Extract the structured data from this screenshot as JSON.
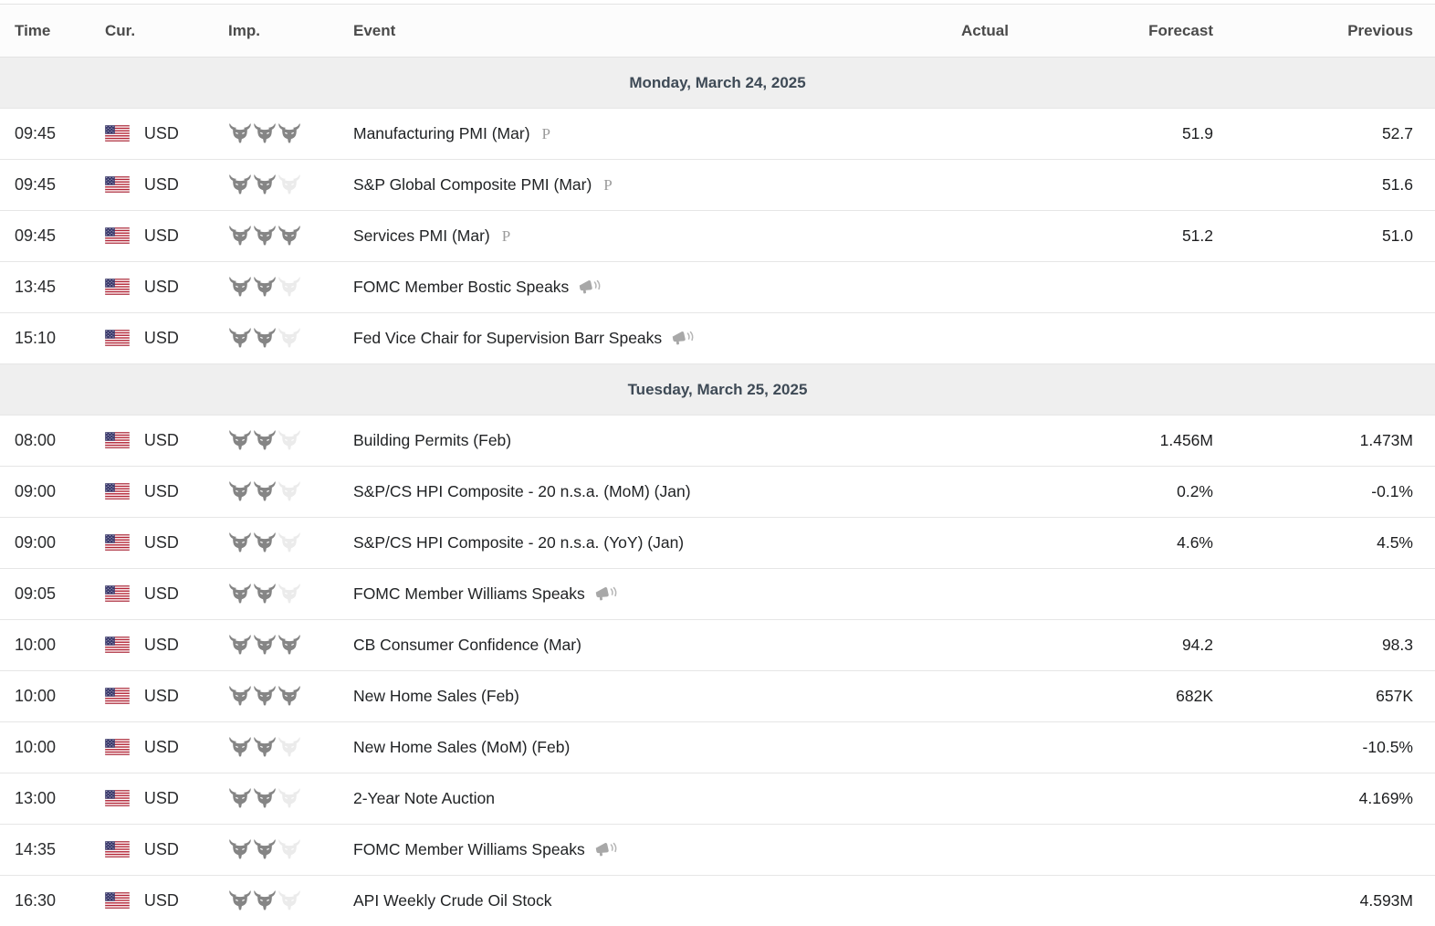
{
  "table": {
    "columns": [
      "Time",
      "Cur.",
      "Imp.",
      "Event",
      "Actual",
      "Forecast",
      "Previous"
    ],
    "groups": [
      {
        "date": "Monday, March 24, 2025",
        "rows": [
          {
            "time": "09:45",
            "currency": "USD",
            "importance": 3,
            "event": "Manufacturing PMI (Mar)",
            "preliminary": true,
            "speech": false,
            "actual": "",
            "forecast": "51.9",
            "previous": "52.7"
          },
          {
            "time": "09:45",
            "currency": "USD",
            "importance": 2,
            "event": "S&P Global Composite PMI (Mar)",
            "preliminary": true,
            "speech": false,
            "actual": "",
            "forecast": "",
            "previous": "51.6"
          },
          {
            "time": "09:45",
            "currency": "USD",
            "importance": 3,
            "event": "Services PMI (Mar)",
            "preliminary": true,
            "speech": false,
            "actual": "",
            "forecast": "51.2",
            "previous": "51.0"
          },
          {
            "time": "13:45",
            "currency": "USD",
            "importance": 2,
            "event": "FOMC Member Bostic Speaks",
            "preliminary": false,
            "speech": true,
            "actual": "",
            "forecast": "",
            "previous": ""
          },
          {
            "time": "15:10",
            "currency": "USD",
            "importance": 2,
            "event": "Fed Vice Chair for Supervision Barr Speaks",
            "preliminary": false,
            "speech": true,
            "actual": "",
            "forecast": "",
            "previous": ""
          }
        ]
      },
      {
        "date": "Tuesday, March 25, 2025",
        "rows": [
          {
            "time": "08:00",
            "currency": "USD",
            "importance": 2,
            "event": "Building Permits (Feb)",
            "preliminary": false,
            "speech": false,
            "actual": "",
            "forecast": "1.456M",
            "previous": "1.473M"
          },
          {
            "time": "09:00",
            "currency": "USD",
            "importance": 2,
            "event": "S&P/CS HPI Composite - 20 n.s.a. (MoM) (Jan)",
            "preliminary": false,
            "speech": false,
            "actual": "",
            "forecast": "0.2%",
            "previous": "-0.1%"
          },
          {
            "time": "09:00",
            "currency": "USD",
            "importance": 2,
            "event": "S&P/CS HPI Composite - 20 n.s.a. (YoY) (Jan)",
            "preliminary": false,
            "speech": false,
            "actual": "",
            "forecast": "4.6%",
            "previous": "4.5%"
          },
          {
            "time": "09:05",
            "currency": "USD",
            "importance": 2,
            "event": "FOMC Member Williams Speaks",
            "preliminary": false,
            "speech": true,
            "actual": "",
            "forecast": "",
            "previous": ""
          },
          {
            "time": "10:00",
            "currency": "USD",
            "importance": 3,
            "event": "CB Consumer Confidence (Mar)",
            "preliminary": false,
            "speech": false,
            "actual": "",
            "forecast": "94.2",
            "previous": "98.3"
          },
          {
            "time": "10:00",
            "currency": "USD",
            "importance": 3,
            "event": "New Home Sales (Feb)",
            "preliminary": false,
            "speech": false,
            "actual": "",
            "forecast": "682K",
            "previous": "657K"
          },
          {
            "time": "10:00",
            "currency": "USD",
            "importance": 2,
            "event": "New Home Sales (MoM) (Feb)",
            "preliminary": false,
            "speech": false,
            "actual": "",
            "forecast": "",
            "previous": "-10.5%"
          },
          {
            "time": "13:00",
            "currency": "USD",
            "importance": 2,
            "event": "2-Year Note Auction",
            "preliminary": false,
            "speech": false,
            "actual": "",
            "forecast": "",
            "previous": "4.169%"
          },
          {
            "time": "14:35",
            "currency": "USD",
            "importance": 2,
            "event": "FOMC Member Williams Speaks",
            "preliminary": false,
            "speech": true,
            "actual": "",
            "forecast": "",
            "previous": ""
          },
          {
            "time": "16:30",
            "currency": "USD",
            "importance": 2,
            "event": "API Weekly Crude Oil Stock",
            "preliminary": false,
            "speech": false,
            "actual": "",
            "forecast": "",
            "previous": "4.593M"
          }
        ]
      }
    ]
  },
  "icons": {
    "importance": "bull-icon",
    "speech": "megaphone-icon",
    "currency_flag": "us-flag-icon",
    "preliminary_glyph": "P"
  },
  "colors": {
    "date_band_bg": "#efefef",
    "row_border": "#e6e6e6",
    "header_text": "#4a4a4a",
    "date_text": "#3e4a56",
    "body_text": "#232526",
    "bull_active": "#858585",
    "bull_inactive": "#ebebeb",
    "icon_gray": "#a8a8a8",
    "flag_red": "#b22234",
    "flag_blue": "#3c3b6e"
  }
}
